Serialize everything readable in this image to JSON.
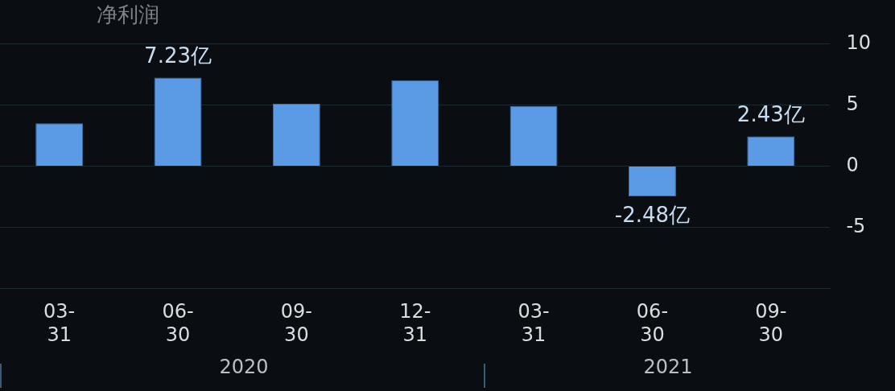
{
  "chart_data": {
    "type": "bar",
    "title": "净利润",
    "categories": [
      "03-\n31",
      "06-\n30",
      "09-\n30",
      "12-\n31",
      "03-\n31",
      "06-\n30",
      "09-\n30"
    ],
    "values": [
      3.5,
      7.23,
      5.1,
      7.0,
      4.9,
      -2.48,
      2.43
    ],
    "value_labels": [
      null,
      "7.23亿",
      null,
      null,
      null,
      "-2.48亿",
      "2.43亿"
    ],
    "color": "#5b9be6",
    "ylim": [
      -10,
      10
    ],
    "yticks": [
      {
        "value": -10,
        "label": null
      },
      -5,
      0,
      5,
      10
    ],
    "grid": "y",
    "legend": false,
    "annotations": [
      "2020",
      "2021"
    ]
  }
}
